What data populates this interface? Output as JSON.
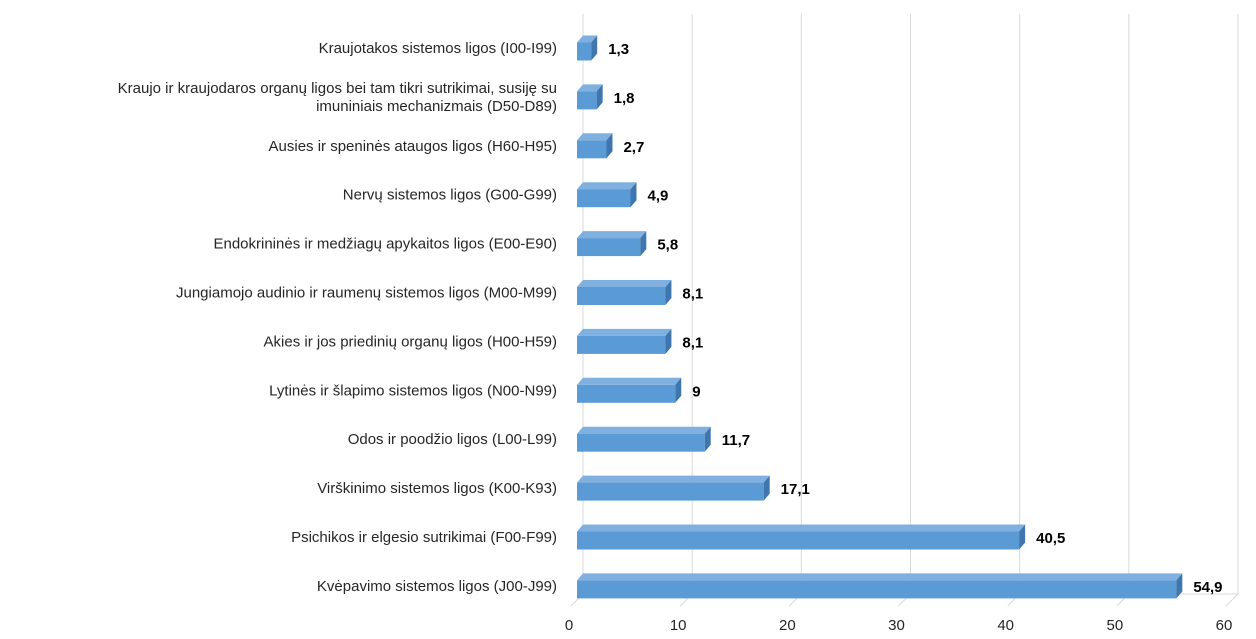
{
  "chart_data": {
    "type": "bar",
    "orientation": "horizontal",
    "style": "3d",
    "categories": [
      "Kraujotakos sistemos ligos (I00-I99)",
      "Kraujo ir kraujodaros organų ligos bei tam tikri sutrikimai, susiję su imuniniais mechanizmais (D50-D89)",
      "Ausies ir speninės ataugos ligos (H60-H95)",
      "Nervų sistemos ligos (G00-G99)",
      "Endokrininės ir medžiagų apykaitos ligos (E00-E90)",
      "Jungiamojo audinio ir raumenų sistemos ligos (M00-M99)",
      "Akies ir jos priedinių organų ligos (H00-H59)",
      "Lytinės ir šlapimo sistemos ligos (N00-N99)",
      "Odos ir poodžio ligos (L00-L99)",
      "Virškinimo sistemos ligos (K00-K93)",
      "Psichikos ir elgesio sutrikimai (F00-F99)",
      "Kvėpavimo sistemos ligos (J00-J99)"
    ],
    "category_lines": [
      [
        "Kraujotakos sistemos ligos (I00-I99)"
      ],
      [
        "Kraujo ir kraujodaros organų ligos bei tam tikri sutrikimai, susiję su",
        "imuniniais mechanizmais (D50-D89)"
      ],
      [
        "Ausies ir speninės ataugos ligos (H60-H95)"
      ],
      [
        "Nervų sistemos ligos (G00-G99)"
      ],
      [
        "Endokrininės ir medžiagų apykaitos ligos (E00-E90)"
      ],
      [
        "Jungiamojo audinio ir raumenų sistemos ligos (M00-M99)"
      ],
      [
        "Akies ir jos priedinių organų ligos (H00-H59)"
      ],
      [
        "Lytinės ir šlapimo sistemos ligos (N00-N99)"
      ],
      [
        "Odos ir poodžio ligos (L00-L99)"
      ],
      [
        "Virškinimo sistemos ligos (K00-K93)"
      ],
      [
        "Psichikos ir elgesio sutrikimai (F00-F99)"
      ],
      [
        "Kvėpavimo sistemos ligos (J00-J99)"
      ]
    ],
    "values": [
      1.3,
      1.8,
      2.7,
      4.9,
      5.8,
      8.1,
      8.1,
      9,
      11.7,
      17.1,
      40.5,
      54.9
    ],
    "value_labels": [
      "1,3",
      "1,8",
      "2,7",
      "4,9",
      "5,8",
      "8,1",
      "8,1",
      "9",
      "11,7",
      "17,1",
      "40,5",
      "54,9"
    ],
    "xlim": [
      0,
      60
    ],
    "xticks": [
      0,
      10,
      20,
      30,
      40,
      50,
      60
    ],
    "xtick_labels": [
      "0",
      "10",
      "20",
      "30",
      "40",
      "50",
      "60"
    ],
    "grid": true,
    "legend": false,
    "title": "",
    "xlabel": "",
    "ylabel": "",
    "colors": {
      "bar_front": "#5b9bd5",
      "bar_top": "#7fb0e0",
      "bar_side": "#3f76ad",
      "gridline": "#d9d9d9",
      "floor": "#d9d9d9"
    }
  }
}
